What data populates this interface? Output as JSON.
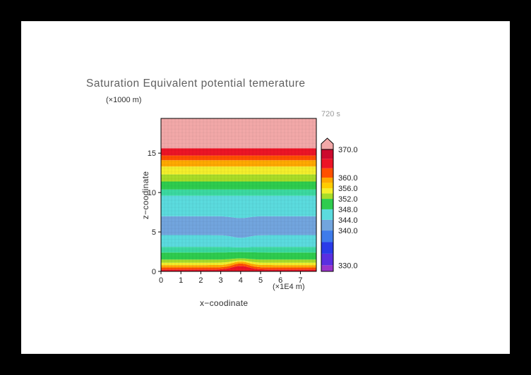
{
  "chart_data": {
    "type": "heatmap",
    "title": "Saturation Equivalent potential temerature",
    "time_label": "720 s",
    "xlabel": "x−coodinate",
    "xunit": "(×1E4 m)",
    "ylabel": "z−coodinate",
    "yunit": "(×1000 m)",
    "x_ticks": [
      0,
      1,
      2,
      3,
      4,
      5,
      6,
      7
    ],
    "y_ticks": [
      0,
      5,
      10,
      15
    ],
    "x_range": [
      0,
      7.8
    ],
    "y_range": [
      0,
      19.4
    ],
    "grid": "faint mesh lines over filled contours",
    "bump_center_x": 4.0,
    "bump_sigma": 0.4,
    "bands": [
      {
        "z0": 0.0,
        "z1": 0.25,
        "color": "#EC1426",
        "value_range": [
          364,
          368
        ],
        "bump0": 0,
        "bump1": 0.45
      },
      {
        "z0": 0.25,
        "z1": 0.5,
        "color": "#FF5000",
        "value_range": [
          360,
          364
        ],
        "bump0": 0.45,
        "bump1": 0.5
      },
      {
        "z0": 0.5,
        "z1": 0.8,
        "color": "#FFA900",
        "value_range": [
          356,
          360
        ],
        "bump0": 0.5,
        "bump1": 0.45
      },
      {
        "z0": 0.8,
        "z1": 1.1,
        "color": "#F4EE2C",
        "value_range": [
          354,
          356
        ],
        "bump0": 0.45,
        "bump1": 0.3
      },
      {
        "z0": 1.1,
        "z1": 1.5,
        "color": "#A8DC28",
        "value_range": [
          352,
          354
        ],
        "bump0": 0.3,
        "bump1": 0.15
      },
      {
        "z0": 1.5,
        "z1": 2.4,
        "color": "#2ECC4E",
        "value_range": [
          350,
          352
        ],
        "bump0": 0.15,
        "bump1": 0.05
      },
      {
        "z0": 2.4,
        "z1": 3.1,
        "color": "#3BD9A0",
        "value_range": [
          348,
          350
        ],
        "bump0": 0.05,
        "bump1": -0.05
      },
      {
        "z0": 3.1,
        "z1": 4.6,
        "color": "#5BDBDE",
        "value_range": [
          344,
          348
        ],
        "bump0": -0.05,
        "bump1": -0.35
      },
      {
        "z0": 4.6,
        "z1": 7.0,
        "color": "#72A5DE",
        "value_range": [
          340,
          344
        ],
        "bump0": -0.35,
        "bump1": -0.25
      },
      {
        "z0": 7.0,
        "z1": 9.6,
        "color": "#5BDBDE",
        "value_range": [
          344,
          348
        ],
        "bump0": -0.25,
        "bump1": 0
      },
      {
        "z0": 9.6,
        "z1": 10.4,
        "color": "#3BD9A0",
        "value_range": [
          348,
          350
        ],
        "bump0": 0,
        "bump1": 0
      },
      {
        "z0": 10.4,
        "z1": 11.4,
        "color": "#2ECC4E",
        "value_range": [
          350,
          352
        ],
        "bump0": 0,
        "bump1": 0
      },
      {
        "z0": 11.4,
        "z1": 12.3,
        "color": "#A8DC28",
        "value_range": [
          352,
          354
        ],
        "bump0": 0,
        "bump1": 0
      },
      {
        "z0": 12.3,
        "z1": 13.3,
        "color": "#F4EE2C",
        "value_range": [
          354,
          356
        ],
        "bump0": 0,
        "bump1": 0
      },
      {
        "z0": 13.3,
        "z1": 14.1,
        "color": "#FFA900",
        "value_range": [
          356,
          360
        ],
        "bump0": 0,
        "bump1": 0
      },
      {
        "z0": 14.1,
        "z1": 14.7,
        "color": "#FF5000",
        "value_range": [
          360,
          364
        ],
        "bump0": 0,
        "bump1": 0
      },
      {
        "z0": 14.7,
        "z1": 15.6,
        "color": "#EC1426",
        "value_range": [
          364,
          370
        ],
        "bump0": 0,
        "bump1": 0
      },
      {
        "z0": 15.6,
        "z1": 19.4,
        "color": "#F2A8A8",
        "value_range": [
          370,
          null
        ],
        "bump0": 0,
        "bump1": 0
      }
    ],
    "colorbar": {
      "arrow_color": "#F2A8A8",
      "segments": [
        {
          "f0": 0.0,
          "f1": 0.05,
          "color": "#9A35CC"
        },
        {
          "f0": 0.05,
          "f1": 0.145,
          "color": "#5A2FE0"
        },
        {
          "f0": 0.145,
          "f1": 0.24,
          "color": "#2A3BE8"
        },
        {
          "f0": 0.24,
          "f1": 0.335,
          "color": "#3E7BEA"
        },
        {
          "f0": 0.335,
          "f1": 0.4225,
          "color": "#72A5DE"
        },
        {
          "f0": 0.4225,
          "f1": 0.509,
          "color": "#5BDBDE"
        },
        {
          "f0": 0.509,
          "f1": 0.595,
          "color": "#2ECC4E"
        },
        {
          "f0": 0.595,
          "f1": 0.639,
          "color": "#A8DC28"
        },
        {
          "f0": 0.639,
          "f1": 0.682,
          "color": "#F4EE2C"
        },
        {
          "f0": 0.682,
          "f1": 0.726,
          "color": "#FFCC00"
        },
        {
          "f0": 0.726,
          "f1": 0.769,
          "color": "#FFA900"
        },
        {
          "f0": 0.769,
          "f1": 0.846,
          "color": "#FF5000"
        },
        {
          "f0": 0.846,
          "f1": 0.923,
          "color": "#EC1426"
        },
        {
          "f0": 0.923,
          "f1": 1.0,
          "color": "#CC0A2E"
        }
      ],
      "ticks": [
        {
          "label": "370.0",
          "f": 1.0
        },
        {
          "label": "360.0",
          "f": 0.769
        },
        {
          "label": "356.0",
          "f": 0.682
        },
        {
          "label": "352.0",
          "f": 0.595
        },
        {
          "label": "348.0",
          "f": 0.509
        },
        {
          "label": "344.0",
          "f": 0.4225
        },
        {
          "label": "340.0",
          "f": 0.335
        },
        {
          "label": "330.0",
          "f": 0.05
        }
      ]
    }
  }
}
